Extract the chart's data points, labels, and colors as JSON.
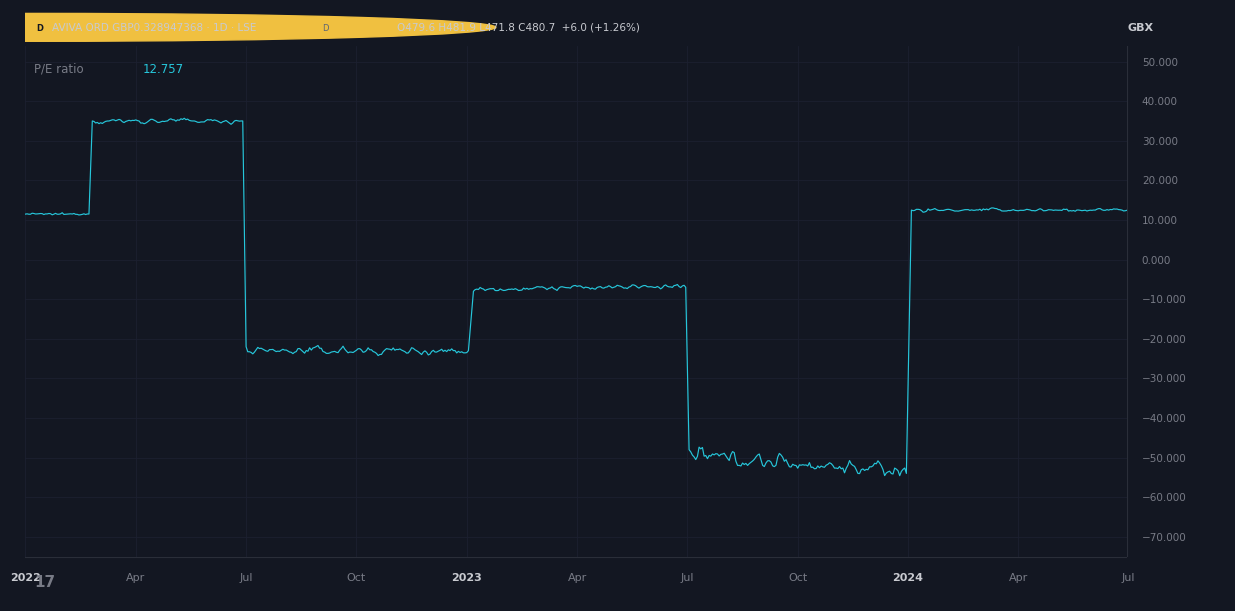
{
  "title_bar": "AVIVA ORD GBP0.328947368 · 1D · LSE",
  "ohlc_o": "O",
  "ohlc_o_val": "479.6",
  "ohlc_h": " H",
  "ohlc_h_val": "481.9",
  "ohlc_l": " L",
  "ohlc_l_val": "471.8",
  "ohlc_c": " C",
  "ohlc_c_val": "480.7",
  "ohlc_chg": " +6.0 (+1.26%)",
  "currency": "GBX",
  "pe_label": "P/E ratio",
  "pe_value": "12.757",
  "bg_color": "#131722",
  "header_bg": "#161b27",
  "line_color": "#26c6da",
  "grid_color": "#1c2030",
  "text_color": "#787b86",
  "title_color": "#c8cad0",
  "ohlc_color": "#c8cad0",
  "chg_color": "#26a69a",
  "pe_value_color": "#26c6da",
  "axis_range": [
    -75,
    54
  ],
  "yticks": [
    50,
    40,
    30,
    20,
    10,
    0,
    -10,
    -20,
    -30,
    -40,
    -50,
    -60,
    -70
  ],
  "xtick_labels": [
    "2022",
    "Apr",
    "Jul",
    "Oct",
    "2023",
    "Apr",
    "Jul",
    "Oct",
    "2024",
    "Apr",
    "Jul"
  ],
  "total_points": 660,
  "xtick_positions": [
    0,
    66,
    132,
    198,
    264,
    330,
    396,
    462,
    528,
    594,
    660
  ]
}
